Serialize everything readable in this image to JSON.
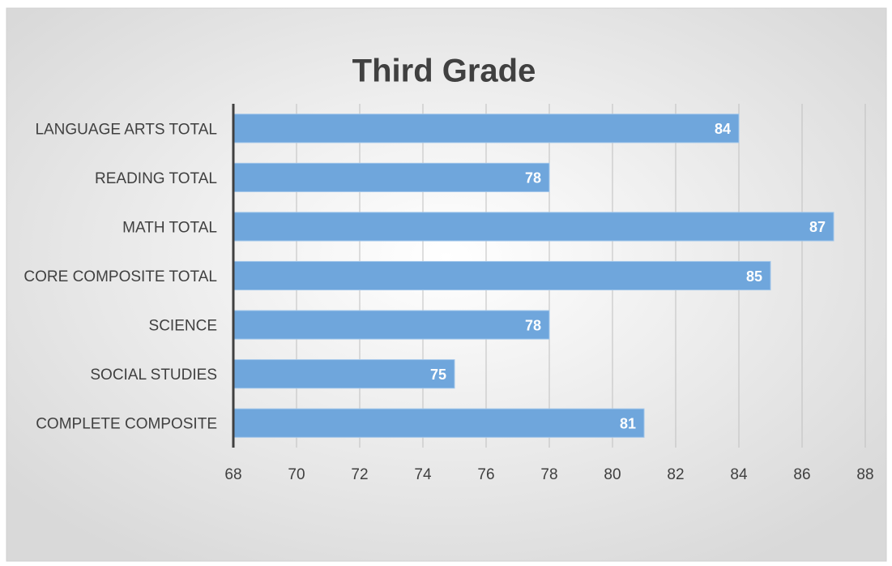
{
  "chart_data": {
    "type": "bar",
    "orientation": "horizontal",
    "title": "Third Grade",
    "categories": [
      "LANGUAGE ARTS TOTAL",
      "READING TOTAL",
      "MATH TOTAL",
      "CORE COMPOSITE TOTAL",
      "SCIENCE",
      "SOCIAL STUDIES",
      "COMPLETE COMPOSITE"
    ],
    "values": [
      84,
      78,
      87,
      85,
      78,
      75,
      81
    ],
    "color": "#6fa6dc",
    "xlim": [
      68,
      88
    ],
    "xticks": [
      68,
      70,
      72,
      74,
      76,
      78,
      80,
      82,
      84,
      86,
      88
    ],
    "grid": true,
    "data_labels": true
  }
}
